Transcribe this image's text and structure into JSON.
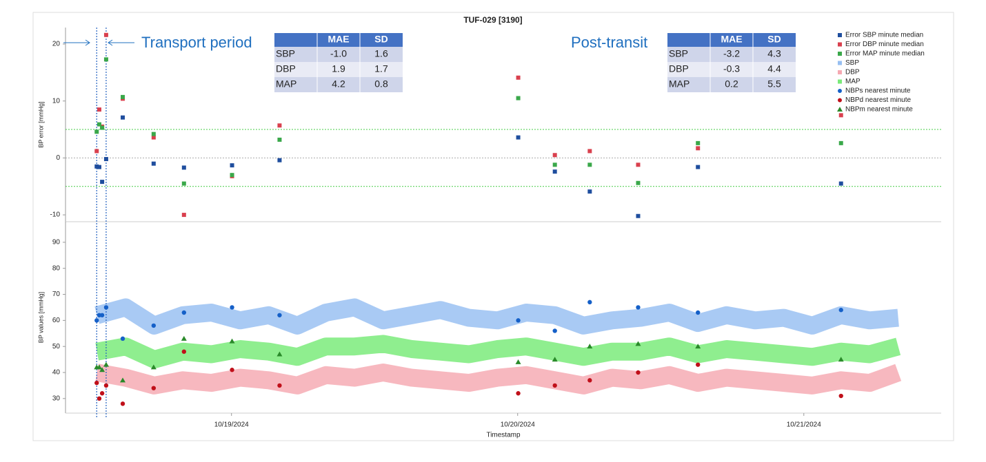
{
  "chart_data": [
    {
      "type": "scatter",
      "title": "TUF-029 [3190]",
      "ylabel": "BP error [mmHg]",
      "xlim": [
        18.42,
        21.48
      ],
      "ylim": [
        -11.2,
        22.9
      ],
      "yticks": [
        -10,
        0,
        10,
        20
      ],
      "x": [
        18.529,
        18.538,
        18.548,
        18.562,
        18.62,
        18.728,
        18.834,
        19.002,
        19.168,
        20.002,
        20.13,
        20.252,
        20.421,
        20.63,
        21.13
      ],
      "hlines": [
        {
          "value": 5,
          "color": "#44cc44"
        },
        {
          "value": 0,
          "color": "#aaaaaa"
        },
        {
          "value": -5,
          "color": "#44cc44"
        }
      ],
      "vlines": [
        18.529,
        18.562
      ],
      "vline_color": "#1f5fbf",
      "legend": "top-right",
      "series": [
        {
          "name": "Error SBP minute median",
          "color": "#1f4e9e",
          "marker": "square",
          "values": [
            -1.5,
            -1.6,
            -4.2,
            -0.2,
            7.1,
            -1.0,
            -1.7,
            -1.3,
            -0.4,
            3.6,
            -2.4,
            -5.9,
            -10.2,
            -1.6,
            -4.5
          ]
        },
        {
          "name": "Error DBP minute median",
          "color": "#d9404e",
          "marker": "square",
          "values": [
            1.2,
            8.5,
            5.5,
            21.6,
            10.4,
            3.6,
            -10.0,
            -3.2,
            5.7,
            14.1,
            0.5,
            1.2,
            -1.2,
            1.7,
            7.5
          ]
        },
        {
          "name": "Error MAP minute median",
          "color": "#3aa84a",
          "marker": "square",
          "values": [
            4.6,
            5.9,
            5.3,
            17.3,
            10.7,
            4.2,
            -4.5,
            -3.0,
            3.2,
            10.5,
            -1.2,
            -1.2,
            -4.4,
            2.6,
            2.6
          ]
        }
      ],
      "annotations": [
        "Transport period",
        "Post-transit"
      ]
    },
    {
      "type": "scatter",
      "ylabel": "BP values [mmHg]",
      "xlabel": "Timestamp",
      "xlim": [
        18.42,
        21.48
      ],
      "ylim": [
        24.4,
        97.9
      ],
      "yticks": [
        30,
        40,
        50,
        60,
        70,
        80,
        90
      ],
      "xticks": [
        {
          "value": 19,
          "label": "10/19/2024"
        },
        {
          "value": 20,
          "label": "10/20/2024"
        },
        {
          "value": 21,
          "label": "10/21/2024"
        }
      ],
      "x": [
        18.529,
        18.538,
        18.548,
        18.562,
        18.62,
        18.728,
        18.834,
        19.002,
        19.168,
        20.002,
        20.13,
        20.252,
        20.421,
        20.63,
        21.13
      ],
      "series": [
        {
          "name": "SBP",
          "color": "#8cb8f0",
          "marker": "cloud",
          "x": [
            18.53,
            18.63,
            18.73,
            18.83,
            18.93,
            19.03,
            19.13,
            19.23,
            19.33,
            19.43,
            19.53,
            19.63,
            19.73,
            19.83,
            19.93,
            20.03,
            20.13,
            20.23,
            20.33,
            20.43,
            20.53,
            20.63,
            20.73,
            20.83,
            20.93,
            21.03,
            21.13,
            21.23,
            21.33
          ],
          "values": [
            62,
            65,
            58,
            62,
            63,
            60,
            62,
            58,
            63,
            65,
            60,
            62,
            64,
            61,
            60,
            63,
            62,
            58,
            60,
            61,
            63,
            59,
            62,
            60,
            61,
            58,
            62,
            60,
            61
          ]
        },
        {
          "name": "DBP",
          "color": "#f4a0aa",
          "marker": "cloud",
          "x": [
            18.53,
            18.63,
            18.73,
            18.83,
            18.93,
            19.03,
            19.13,
            19.23,
            19.33,
            19.43,
            19.53,
            19.63,
            19.73,
            19.83,
            19.93,
            20.03,
            20.13,
            20.23,
            20.33,
            20.43,
            20.53,
            20.63,
            20.73,
            20.83,
            20.93,
            21.03,
            21.13,
            21.23,
            21.33
          ],
          "values": [
            40,
            38,
            35,
            37,
            36,
            38,
            37,
            35,
            39,
            38,
            40,
            38,
            37,
            36,
            38,
            39,
            37,
            35,
            38,
            37,
            39,
            36,
            38,
            37,
            36,
            35,
            37,
            36,
            40
          ]
        },
        {
          "name": "MAP",
          "color": "#6ae86a",
          "marker": "cloud",
          "x": [
            18.53,
            18.63,
            18.73,
            18.83,
            18.93,
            19.03,
            19.13,
            19.23,
            19.33,
            19.43,
            19.53,
            19.63,
            19.73,
            19.83,
            19.93,
            20.03,
            20.13,
            20.23,
            20.33,
            20.43,
            20.53,
            20.63,
            20.73,
            20.83,
            20.93,
            21.03,
            21.13,
            21.23,
            21.33
          ],
          "values": [
            48,
            50,
            45,
            48,
            47,
            49,
            48,
            46,
            50,
            50,
            51,
            49,
            48,
            47,
            49,
            50,
            48,
            46,
            48,
            48,
            50,
            47,
            49,
            48,
            47,
            46,
            48,
            47,
            50
          ]
        },
        {
          "name": "NBPs nearest minute",
          "color": "#1560c8",
          "marker": "circle",
          "values": [
            60,
            62,
            62,
            65,
            53,
            58,
            63,
            65,
            62,
            60,
            56,
            67,
            65,
            63,
            64
          ]
        },
        {
          "name": "NBPd nearest minute",
          "color": "#c0101a",
          "marker": "circle",
          "values": [
            36,
            30,
            32,
            35,
            28,
            34,
            48,
            41,
            35,
            32,
            35,
            37,
            40,
            43,
            31
          ]
        },
        {
          "name": "NBPm nearest minute",
          "color": "#2a8a2a",
          "marker": "triangle",
          "values": [
            42,
            42,
            41,
            43,
            37,
            42,
            53,
            52,
            47,
            44,
            45,
            50,
            51,
            50,
            45
          ]
        }
      ]
    }
  ],
  "tables": [
    {
      "columns": [
        "MAE",
        "SD"
      ],
      "rows": [
        {
          "label": "SBP",
          "cells": [
            "-1.0",
            "1.6"
          ]
        },
        {
          "label": "DBP",
          "cells": [
            "1.9",
            "1.7"
          ]
        },
        {
          "label": "MAP",
          "cells": [
            "4.2",
            "0.8"
          ]
        }
      ]
    },
    {
      "columns": [
        "MAE",
        "SD"
      ],
      "rows": [
        {
          "label": "SBP",
          "cells": [
            "-3.2",
            "4.3"
          ]
        },
        {
          "label": "DBP",
          "cells": [
            "-0.3",
            "4.4"
          ]
        },
        {
          "label": "MAP",
          "cells": [
            "0.2",
            "5.5"
          ]
        }
      ]
    }
  ]
}
